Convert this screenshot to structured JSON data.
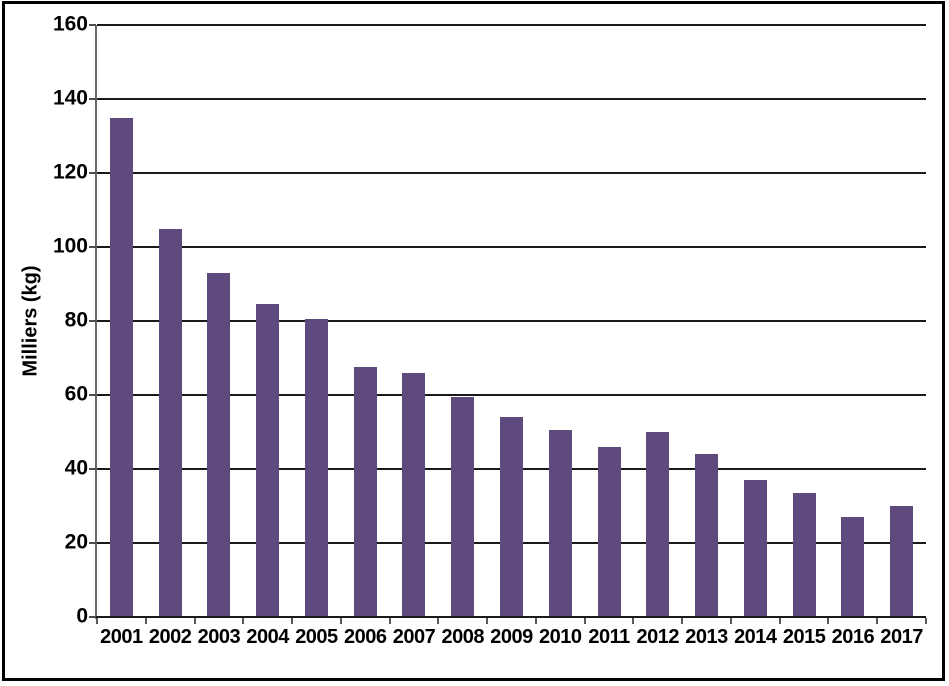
{
  "chart_data": {
    "type": "bar",
    "title": "",
    "xlabel": "",
    "ylabel": "Milliers (kg)",
    "categories": [
      "2001",
      "2002",
      "2003",
      "2004",
      "2005",
      "2006",
      "2007",
      "2008",
      "2009",
      "2010",
      "2011",
      "2012",
      "2013",
      "2014",
      "2015",
      "2016",
      "2017"
    ],
    "values": [
      135,
      105,
      93,
      84.5,
      80.5,
      67.5,
      66,
      59.5,
      54,
      50.5,
      46,
      50,
      44,
      37,
      33.5,
      27,
      30
    ],
    "ylim": [
      0,
      160
    ],
    "yticks": [
      0,
      20,
      40,
      60,
      80,
      100,
      120,
      140,
      160
    ],
    "grid": "horizontal-major",
    "legend": "none",
    "bar_color": "#5E4A7D",
    "gridline_color": "#1a1a1a",
    "axis_color": "#6b6b6b",
    "label_color": "#000000",
    "frame_color": "#000000",
    "background_color": "#ffffff"
  }
}
